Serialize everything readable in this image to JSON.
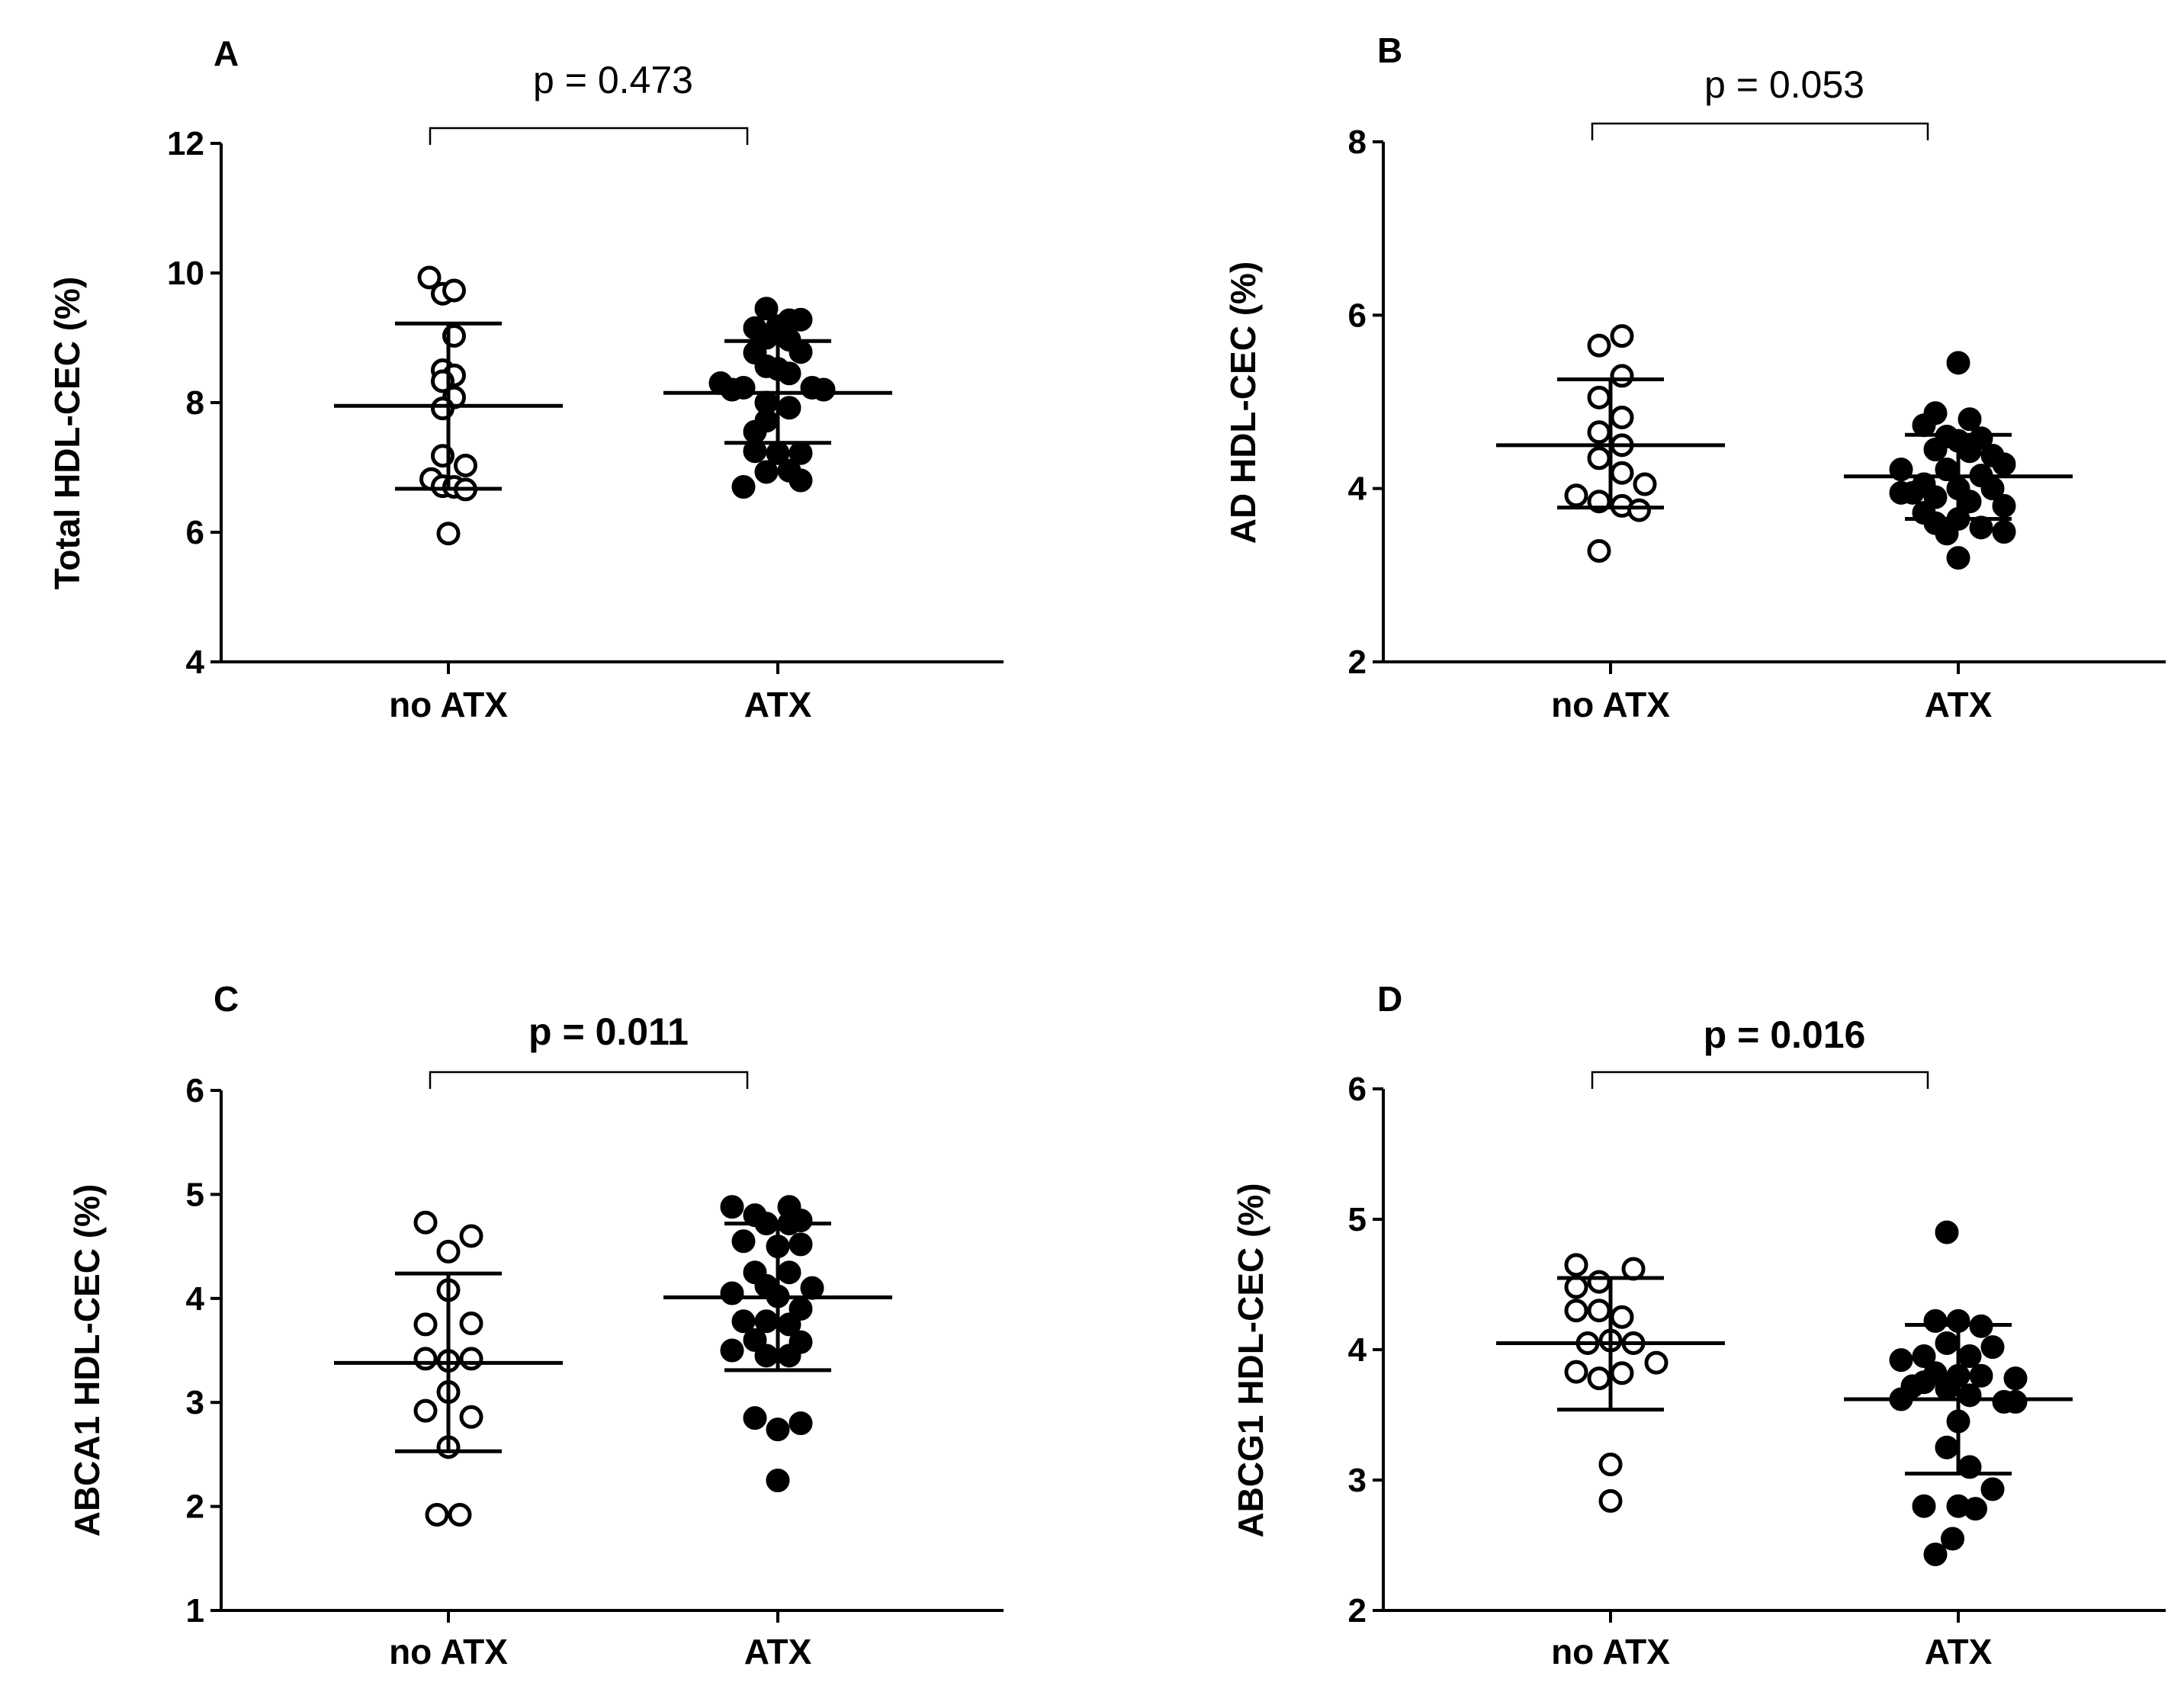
{
  "chart_data": [
    {
      "type": "scatter",
      "panel": "A",
      "ylabel": "Total HDL-CEC (%)",
      "categories": [
        "no ATX",
        "ATX"
      ],
      "ylim": [
        4,
        12
      ],
      "yticks": [
        4,
        6,
        8,
        10,
        12
      ],
      "p_value": "p = 0.473",
      "p_bold": false,
      "series": [
        {
          "name": "no ATX",
          "filled": false,
          "mean": 7.95,
          "sd_upper": 9.22,
          "sd_lower": 6.67,
          "points": [
            {
              "v": 9.93,
              "o": -1.0
            },
            {
              "v": 9.68,
              "o": -0.3
            },
            {
              "v": 9.73,
              "o": 0.3
            },
            {
              "v": 9.03,
              "o": 0.3
            },
            {
              "v": 8.5,
              "o": -0.3
            },
            {
              "v": 8.42,
              "o": 0.3
            },
            {
              "v": 8.33,
              "o": -0.3
            },
            {
              "v": 8.08,
              "o": 0.3
            },
            {
              "v": 7.91,
              "o": -0.3
            },
            {
              "v": 7.18,
              "o": -0.3
            },
            {
              "v": 7.03,
              "o": 0.9
            },
            {
              "v": 6.82,
              "o": -0.9
            },
            {
              "v": 6.71,
              "o": -0.3
            },
            {
              "v": 6.7,
              "o": 0.3
            },
            {
              "v": 6.66,
              "o": 0.9
            },
            {
              "v": 5.98,
              "o": 0
            }
          ]
        },
        {
          "name": "ATX",
          "filled": true,
          "mean": 8.15,
          "sd_upper": 8.95,
          "sd_lower": 7.38,
          "points": [
            {
              "v": 9.45,
              "o": -0.6
            },
            {
              "v": 9.27,
              "o": 0.6
            },
            {
              "v": 9.28,
              "o": 1.2
            },
            {
              "v": 9.15,
              "o": -1.2
            },
            {
              "v": 9.18,
              "o": 0
            },
            {
              "v": 9.0,
              "o": -0.6
            },
            {
              "v": 8.97,
              "o": 0.6
            },
            {
              "v": 8.77,
              "o": -1.2
            },
            {
              "v": 8.78,
              "o": 1.2
            },
            {
              "v": 8.56,
              "o": -0.6
            },
            {
              "v": 8.52,
              "o": 0
            },
            {
              "v": 8.45,
              "o": 0.6
            },
            {
              "v": 8.3,
              "o": -3.0
            },
            {
              "v": 8.2,
              "o": -2.4
            },
            {
              "v": 8.23,
              "o": -1.8
            },
            {
              "v": 8.23,
              "o": 1.8
            },
            {
              "v": 8.2,
              "o": 2.4
            },
            {
              "v": 8.0,
              "o": -0.6
            },
            {
              "v": 7.92,
              "o": 0.6
            },
            {
              "v": 7.72,
              "o": -0.6
            },
            {
              "v": 7.55,
              "o": -1.2
            },
            {
              "v": 7.25,
              "o": -1.2
            },
            {
              "v": 7.22,
              "o": 0
            },
            {
              "v": 7.22,
              "o": 1.2
            },
            {
              "v": 6.93,
              "o": -0.6
            },
            {
              "v": 6.95,
              "o": 0.6
            },
            {
              "v": 6.8,
              "o": 1.2
            },
            {
              "v": 6.7,
              "o": -1.8
            }
          ]
        }
      ]
    },
    {
      "type": "scatter",
      "panel": "B",
      "ylabel": "AD HDL-CEC (%)",
      "categories": [
        "no ATX",
        "ATX"
      ],
      "ylim": [
        2,
        8
      ],
      "yticks": [
        2,
        4,
        6,
        8
      ],
      "p_value": "p = 0.053",
      "p_bold": false,
      "series": [
        {
          "name": "no ATX",
          "filled": false,
          "mean": 4.5,
          "sd_upper": 5.26,
          "sd_lower": 3.78,
          "points": [
            {
              "v": 5.76,
              "o": 0.6
            },
            {
              "v": 5.65,
              "o": -0.6
            },
            {
              "v": 5.3,
              "o": 0.6
            },
            {
              "v": 5.05,
              "o": -0.6
            },
            {
              "v": 4.82,
              "o": 0.6
            },
            {
              "v": 4.65,
              "o": -0.6
            },
            {
              "v": 4.5,
              "o": 0.6
            },
            {
              "v": 4.35,
              "o": -0.6
            },
            {
              "v": 4.18,
              "o": 0.6
            },
            {
              "v": 4.05,
              "o": 1.8
            },
            {
              "v": 3.92,
              "o": -1.8
            },
            {
              "v": 3.85,
              "o": -0.6
            },
            {
              "v": 3.8,
              "o": 0.6
            },
            {
              "v": 3.75,
              "o": 1.5
            },
            {
              "v": 3.28,
              "o": -0.6
            }
          ]
        },
        {
          "name": "ATX",
          "filled": true,
          "mean": 4.14,
          "sd_upper": 4.62,
          "sd_lower": 3.65,
          "points": [
            {
              "v": 5.45,
              "o": 0
            },
            {
              "v": 4.87,
              "o": -1.2
            },
            {
              "v": 4.8,
              "o": 0.6
            },
            {
              "v": 4.73,
              "o": -1.8
            },
            {
              "v": 4.6,
              "o": -0.6
            },
            {
              "v": 4.55,
              "o": 0
            },
            {
              "v": 4.58,
              "o": 1.2
            },
            {
              "v": 4.45,
              "o": -1.2
            },
            {
              "v": 4.43,
              "o": 0.6
            },
            {
              "v": 4.38,
              "o": 1.8
            },
            {
              "v": 4.28,
              "o": 2.4
            },
            {
              "v": 4.22,
              "o": -3.0
            },
            {
              "v": 4.22,
              "o": -0.6
            },
            {
              "v": 4.15,
              "o": 1.2
            },
            {
              "v": 4.05,
              "o": -1.8
            },
            {
              "v": 4.0,
              "o": 0
            },
            {
              "v": 4.0,
              "o": 1.8
            },
            {
              "v": 3.95,
              "o": -3.0
            },
            {
              "v": 3.95,
              "o": -2.4
            },
            {
              "v": 3.9,
              "o": -1.2
            },
            {
              "v": 3.85,
              "o": 0.6
            },
            {
              "v": 3.8,
              "o": 2.4
            },
            {
              "v": 3.72,
              "o": -1.8
            },
            {
              "v": 3.65,
              "o": 0
            },
            {
              "v": 3.6,
              "o": -1.2
            },
            {
              "v": 3.55,
              "o": 1.2
            },
            {
              "v": 3.5,
              "o": 2.4
            },
            {
              "v": 3.48,
              "o": -0.6
            },
            {
              "v": 3.2,
              "o": 0
            }
          ]
        }
      ]
    },
    {
      "type": "scatter",
      "panel": "C",
      "ylabel": "ABCA1 HDL-CEC (%)",
      "categories": [
        "no ATX",
        "ATX"
      ],
      "ylim": [
        1,
        6
      ],
      "yticks": [
        1,
        2,
        3,
        4,
        5,
        6
      ],
      "p_value": "p = 0.011",
      "p_bold": true,
      "series": [
        {
          "name": "no ATX",
          "filled": false,
          "mean": 3.38,
          "sd_upper": 4.24,
          "sd_lower": 2.53,
          "points": [
            {
              "v": 4.73,
              "o": -1.2
            },
            {
              "v": 4.6,
              "o": 1.2
            },
            {
              "v": 4.45,
              "o": 0
            },
            {
              "v": 4.08,
              "o": 0
            },
            {
              "v": 3.75,
              "o": -1.2
            },
            {
              "v": 3.76,
              "o": 1.2
            },
            {
              "v": 3.42,
              "o": -1.2
            },
            {
              "v": 3.4,
              "o": 0
            },
            {
              "v": 3.42,
              "o": 1.2
            },
            {
              "v": 3.1,
              "o": 0
            },
            {
              "v": 2.92,
              "o": -1.2
            },
            {
              "v": 2.86,
              "o": 1.2
            },
            {
              "v": 2.57,
              "o": 0
            },
            {
              "v": 1.92,
              "o": -0.6
            },
            {
              "v": 1.92,
              "o": 0.6
            }
          ]
        },
        {
          "name": "ATX",
          "filled": true,
          "mean": 4.01,
          "sd_upper": 4.72,
          "sd_lower": 3.31,
          "points": [
            {
              "v": 4.88,
              "o": -2.4
            },
            {
              "v": 4.88,
              "o": 0.6
            },
            {
              "v": 4.8,
              "o": -1.2
            },
            {
              "v": 4.75,
              "o": 1.2
            },
            {
              "v": 4.72,
              "o": -0.6
            },
            {
              "v": 4.72,
              "o": 0.6
            },
            {
              "v": 4.55,
              "o": -1.8
            },
            {
              "v": 4.5,
              "o": 0
            },
            {
              "v": 4.52,
              "o": 1.2
            },
            {
              "v": 4.25,
              "o": -1.2
            },
            {
              "v": 4.25,
              "o": 0.6
            },
            {
              "v": 4.12,
              "o": -0.6
            },
            {
              "v": 4.1,
              "o": 1.8
            },
            {
              "v": 4.05,
              "o": -2.4
            },
            {
              "v": 4.02,
              "o": 0
            },
            {
              "v": 3.9,
              "o": 1.2
            },
            {
              "v": 3.78,
              "o": -1.8
            },
            {
              "v": 3.78,
              "o": -0.6
            },
            {
              "v": 3.75,
              "o": 0.6
            },
            {
              "v": 3.6,
              "o": -1.2
            },
            {
              "v": 3.58,
              "o": 1.2
            },
            {
              "v": 3.5,
              "o": -2.4
            },
            {
              "v": 3.45,
              "o": -0.6
            },
            {
              "v": 3.45,
              "o": 0.6
            },
            {
              "v": 2.85,
              "o": -1.2
            },
            {
              "v": 2.8,
              "o": 1.2
            },
            {
              "v": 2.74,
              "o": 0
            },
            {
              "v": 2.25,
              "o": 0
            }
          ]
        }
      ]
    },
    {
      "type": "scatter",
      "panel": "D",
      "ylabel": "ABCG1 HDL-CEC (%)",
      "categories": [
        "no ATX",
        "ATX"
      ],
      "ylim": [
        2,
        6
      ],
      "yticks": [
        2,
        3,
        4,
        5,
        6
      ],
      "p_value": "p = 0.016",
      "p_bold": true,
      "series": [
        {
          "name": "no ATX",
          "filled": false,
          "mean": 4.05,
          "sd_upper": 4.55,
          "sd_lower": 3.54,
          "points": [
            {
              "v": 4.65,
              "o": -1.8
            },
            {
              "v": 4.62,
              "o": 1.2
            },
            {
              "v": 4.52,
              "o": -0.6
            },
            {
              "v": 4.48,
              "o": -1.8
            },
            {
              "v": 4.3,
              "o": -1.8
            },
            {
              "v": 4.3,
              "o": -0.6
            },
            {
              "v": 4.25,
              "o": 0.6
            },
            {
              "v": 4.05,
              "o": -1.2
            },
            {
              "v": 4.07,
              "o": 0
            },
            {
              "v": 4.05,
              "o": 1.2
            },
            {
              "v": 3.9,
              "o": 2.4
            },
            {
              "v": 3.83,
              "o": -1.8
            },
            {
              "v": 3.78,
              "o": -0.6
            },
            {
              "v": 3.82,
              "o": 0.6
            },
            {
              "v": 3.12,
              "o": 0
            },
            {
              "v": 2.84,
              "o": 0
            }
          ]
        },
        {
          "name": "ATX",
          "filled": true,
          "mean": 3.62,
          "sd_upper": 4.19,
          "sd_lower": 3.05,
          "points": [
            {
              "v": 4.9,
              "o": -0.6
            },
            {
              "v": 4.22,
              "o": -1.2
            },
            {
              "v": 4.22,
              "o": 0
            },
            {
              "v": 4.18,
              "o": 1.2
            },
            {
              "v": 4.05,
              "o": -0.6
            },
            {
              "v": 4.02,
              "o": 1.8
            },
            {
              "v": 3.95,
              "o": -1.8
            },
            {
              "v": 3.95,
              "o": 0.6
            },
            {
              "v": 3.92,
              "o": -3.0
            },
            {
              "v": 3.82,
              "o": -1.2
            },
            {
              "v": 3.8,
              "o": 0
            },
            {
              "v": 3.8,
              "o": 1.2
            },
            {
              "v": 3.78,
              "o": 3.0
            },
            {
              "v": 3.72,
              "o": -2.4
            },
            {
              "v": 3.75,
              "o": -1.8
            },
            {
              "v": 3.7,
              "o": -0.6
            },
            {
              "v": 3.65,
              "o": 0.6
            },
            {
              "v": 3.62,
              "o": -3.0
            },
            {
              "v": 3.6,
              "o": 2.4
            },
            {
              "v": 3.6,
              "o": 3.0
            },
            {
              "v": 3.45,
              "o": 0
            },
            {
              "v": 3.25,
              "o": -0.6
            },
            {
              "v": 3.1,
              "o": 0.6
            },
            {
              "v": 2.93,
              "o": 1.8
            },
            {
              "v": 2.8,
              "o": -1.8
            },
            {
              "v": 2.8,
              "o": 0
            },
            {
              "v": 2.78,
              "o": 0.9
            },
            {
              "v": 2.55,
              "o": -0.3
            },
            {
              "v": 2.43,
              "o": -1.2
            }
          ]
        }
      ]
    }
  ]
}
